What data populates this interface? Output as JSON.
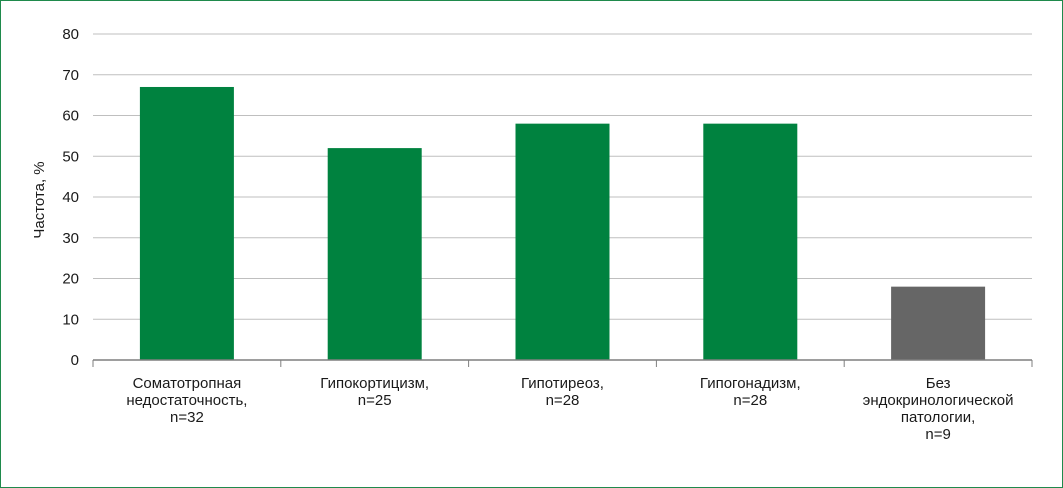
{
  "chart_data": {
    "type": "bar",
    "categories": [
      [
        "Соматотропная",
        "недостаточность,",
        "n=32"
      ],
      [
        "Гипокортицизм,",
        "n=25"
      ],
      [
        "Гипотиреоз,",
        "n=28"
      ],
      [
        "Гипогонадизм,",
        "n=28"
      ],
      [
        "Без",
        "эндокринологической",
        "патологии,",
        "n=9"
      ]
    ],
    "values": [
      67,
      52,
      58,
      58,
      18
    ],
    "bar_colors": [
      "#00823f",
      "#00823f",
      "#00823f",
      "#00823f",
      "#666666"
    ],
    "ylabel": "Частота, %",
    "ylim": [
      0,
      80
    ],
    "yticks": [
      0,
      10,
      20,
      30,
      40,
      50,
      60,
      70,
      80
    ],
    "grid": true,
    "colors": {
      "frame": "#1f8a4c",
      "grid": "#bfbfbf",
      "axis": "#7f7f7f"
    }
  }
}
